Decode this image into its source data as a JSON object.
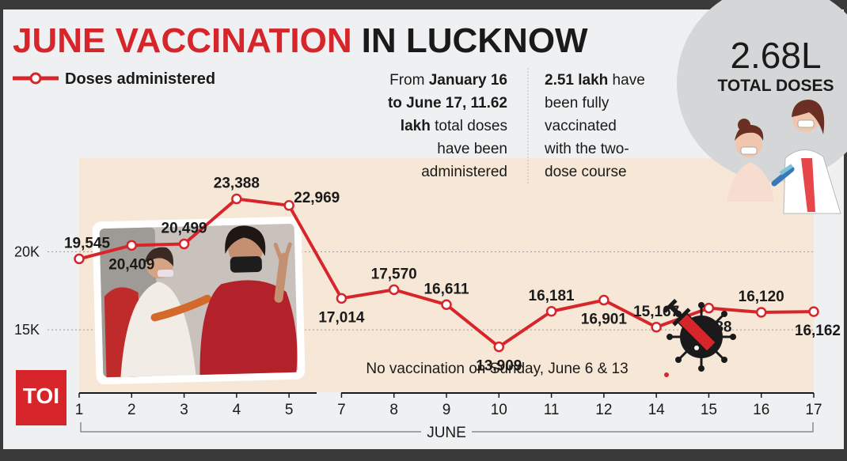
{
  "title": {
    "part1": "JUNE VACCINATION",
    "part2": "IN LUCKNOW"
  },
  "legend": {
    "label": "Doses administered"
  },
  "info_left": {
    "lines": [
      [
        {
          "t": "From ",
          "b": false
        },
        {
          "t": "January 16",
          "b": true
        }
      ],
      [
        {
          "t": "to June 17, 11.62",
          "b": true
        }
      ],
      [
        {
          "t": "lakh",
          "b": true
        },
        {
          "t": " total doses",
          "b": false
        }
      ],
      [
        {
          "t": "have been",
          "b": false
        }
      ],
      [
        {
          "t": "administered",
          "b": false
        }
      ]
    ]
  },
  "info_right": {
    "lines": [
      [
        {
          "t": "2.51 lakh",
          "b": true
        },
        {
          "t": " have",
          "b": false
        }
      ],
      [
        {
          "t": "been fully",
          "b": false
        }
      ],
      [
        {
          "t": "vaccinated",
          "b": false
        }
      ],
      [
        {
          "t": "with the two-",
          "b": false
        }
      ],
      [
        {
          "t": "dose course",
          "b": false
        }
      ]
    ]
  },
  "total": {
    "value": "2.68L",
    "label": "TOTAL DOSES"
  },
  "footnote": "No vaccination on Sunday, June 6 & 13",
  "brand": "TOI",
  "icons": [
    "syringe-virus-icon",
    "vaccination-photo",
    "doctor-patient-illustration"
  ],
  "colors": {
    "line": "#d7262b",
    "plot_bg": "#f6e7d6",
    "page_bg": "#eff0f1",
    "badge_bg": "#d4d6d7",
    "brand_bg": "#d7262b"
  },
  "chart_data": {
    "type": "line",
    "categories": [
      "1",
      "2",
      "3",
      "4",
      "5",
      "7",
      "8",
      "9",
      "10",
      "11",
      "12",
      "14",
      "15",
      "16",
      "17"
    ],
    "series": [
      {
        "name": "Doses administered",
        "values": [
          19545,
          20409,
          20499,
          23388,
          22969,
          17014,
          17570,
          16611,
          13909,
          16181,
          16901,
          15167,
          16388,
          16120,
          16162
        ]
      }
    ],
    "value_labels": [
      "19,545",
      "20,409",
      "20,499",
      "23,388",
      "22,969",
      "17,014",
      "17,570",
      "16,611",
      "13,909",
      "16,181",
      "16,901",
      "15,167",
      "16,388",
      "16,120",
      "16,162"
    ],
    "yticks": [
      {
        "v": 20000,
        "label": "20K"
      },
      {
        "v": 15000,
        "label": "15K"
      }
    ],
    "xlabel": "JUNE",
    "ylim": [
      11000,
      26000
    ],
    "grid": true
  }
}
